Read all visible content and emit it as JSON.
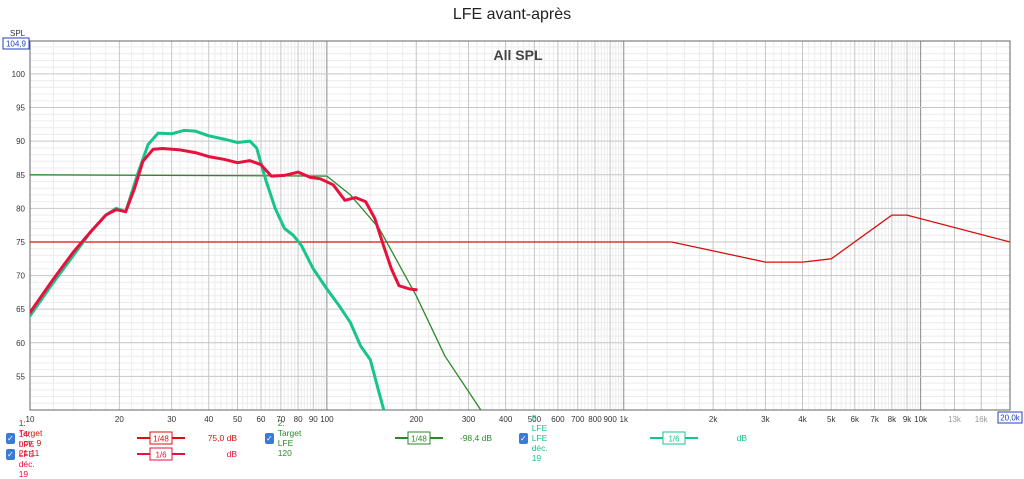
{
  "title": "LFE avant-après",
  "colors": {
    "grid_major": "#a8a8a8",
    "grid_minor": "#dcdcdc",
    "axis_box": "#1f3fbf"
  },
  "chart_data": {
    "type": "line",
    "plot_label": "All SPL",
    "ylabel": "SPL",
    "y_top_box": "104,9",
    "x_right_box": "20,0k",
    "x_scale": "log",
    "xlim": [
      10,
      20000
    ],
    "ylim": [
      50,
      104.9
    ],
    "grid": true,
    "y_ticks": [
      55,
      60,
      65,
      70,
      75,
      80,
      85,
      90,
      95,
      100
    ],
    "x_ticks": [
      {
        "v": 10,
        "t": "10"
      },
      {
        "v": 20,
        "t": "20"
      },
      {
        "v": 30,
        "t": "30"
      },
      {
        "v": 40,
        "t": "40"
      },
      {
        "v": 50,
        "t": "50"
      },
      {
        "v": 60,
        "t": "60"
      },
      {
        "v": 70,
        "t": "70"
      },
      {
        "v": 80,
        "t": "80"
      },
      {
        "v": 90,
        "t": "90"
      },
      {
        "v": 100,
        "t": "100"
      },
      {
        "v": 200,
        "t": "200"
      },
      {
        "v": 300,
        "t": "300"
      },
      {
        "v": 400,
        "t": "400"
      },
      {
        "v": 500,
        "t": "500"
      },
      {
        "v": 600,
        "t": "600"
      },
      {
        "v": 700,
        "t": "700"
      },
      {
        "v": 800,
        "t": "800"
      },
      {
        "v": 900,
        "t": "900"
      },
      {
        "v": 1000,
        "t": "1k"
      },
      {
        "v": 2000,
        "t": "2k"
      },
      {
        "v": 3000,
        "t": "3k"
      },
      {
        "v": 4000,
        "t": "4k"
      },
      {
        "v": 5000,
        "t": "5k"
      },
      {
        "v": 6000,
        "t": "6k"
      },
      {
        "v": 7000,
        "t": "7k"
      },
      {
        "v": 8000,
        "t": "8k"
      },
      {
        "v": 9000,
        "t": "9k"
      },
      {
        "v": 10000,
        "t": "10k"
      },
      {
        "v": 13000,
        "t": "13k",
        "light": true
      },
      {
        "v": 16000,
        "t": "16k",
        "light": true
      }
    ],
    "series": [
      {
        "name": "1: Target nov. 9 21:11",
        "color": "#d81010",
        "width": 1.3,
        "points": [
          [
            10,
            75
          ],
          [
            1450,
            75
          ],
          [
            3000,
            72
          ],
          [
            4000,
            72
          ],
          [
            5000,
            72.5
          ],
          [
            8000,
            79
          ],
          [
            9000,
            79
          ],
          [
            20000,
            75
          ]
        ]
      },
      {
        "name": "2: Target LFE 120",
        "color": "#2a8a2a",
        "width": 1.3,
        "points": [
          [
            10,
            85
          ],
          [
            100,
            84.8
          ],
          [
            120,
            82
          ],
          [
            150,
            77
          ],
          [
            200,
            67
          ],
          [
            250,
            58
          ],
          [
            330,
            50
          ]
        ]
      },
      {
        "name": "8: LFE LFE déc. 19",
        "color": "#17c48c",
        "width": 3,
        "points": [
          [
            10,
            64
          ],
          [
            12,
            69
          ],
          [
            14,
            73
          ],
          [
            16,
            76.5
          ],
          [
            18,
            79
          ],
          [
            19.5,
            80
          ],
          [
            21,
            79.5
          ],
          [
            23,
            85
          ],
          [
            25,
            89.5
          ],
          [
            27,
            91.2
          ],
          [
            30,
            91.1
          ],
          [
            33,
            91.6
          ],
          [
            36,
            91.5
          ],
          [
            40,
            90.8
          ],
          [
            45,
            90.3
          ],
          [
            50,
            89.8
          ],
          [
            55,
            90
          ],
          [
            58,
            89
          ],
          [
            62,
            84.5
          ],
          [
            67,
            80
          ],
          [
            72,
            77
          ],
          [
            77,
            76
          ],
          [
            82,
            74.5
          ],
          [
            90,
            71
          ],
          [
            100,
            68
          ],
          [
            110,
            65.5
          ],
          [
            120,
            63
          ],
          [
            130,
            59.5
          ],
          [
            140,
            57.5
          ],
          [
            150,
            52.5
          ],
          [
            160,
            48
          ]
        ]
      },
      {
        "name": "14: LFE LFE déc. 19",
        "color": "#e8103c",
        "width": 3,
        "points": [
          [
            10,
            64.5
          ],
          [
            12,
            69.5
          ],
          [
            14,
            73.5
          ],
          [
            16,
            76.5
          ],
          [
            18,
            79
          ],
          [
            19.5,
            79.8
          ],
          [
            21,
            79.5
          ],
          [
            22.5,
            83
          ],
          [
            24,
            87
          ],
          [
            26,
            88.8
          ],
          [
            28,
            88.9
          ],
          [
            32,
            88.7
          ],
          [
            36,
            88.3
          ],
          [
            40,
            87.7
          ],
          [
            45,
            87.3
          ],
          [
            50,
            86.8
          ],
          [
            55,
            87.1
          ],
          [
            60,
            86.5
          ],
          [
            65,
            84.8
          ],
          [
            72,
            84.9
          ],
          [
            80,
            85.4
          ],
          [
            88,
            84.6
          ],
          [
            95,
            84.4
          ],
          [
            105,
            83.5
          ],
          [
            115,
            81.2
          ],
          [
            125,
            81.6
          ],
          [
            135,
            81
          ],
          [
            145,
            78.5
          ],
          [
            155,
            74.5
          ],
          [
            165,
            71
          ],
          [
            175,
            68.5
          ],
          [
            190,
            68
          ],
          [
            200,
            67.9
          ]
        ]
      }
    ]
  },
  "legend": [
    {
      "label": "1: Target nov. 9 21:11",
      "smoothing": "1/48",
      "value": "75,0 dB",
      "color": "#d81010"
    },
    {
      "label": "2: Target LFE 120",
      "smoothing": "1/48",
      "value": "-98,4 dB",
      "color": "#2a8a2a"
    },
    {
      "label": "8: LFE LFE déc. 19",
      "smoothing": "1/6",
      "value": "dB",
      "color": "#17c48c"
    },
    {
      "label": "14: LFE LFE déc. 19",
      "smoothing": "1/6",
      "value": "dB",
      "color": "#e8103c"
    }
  ]
}
